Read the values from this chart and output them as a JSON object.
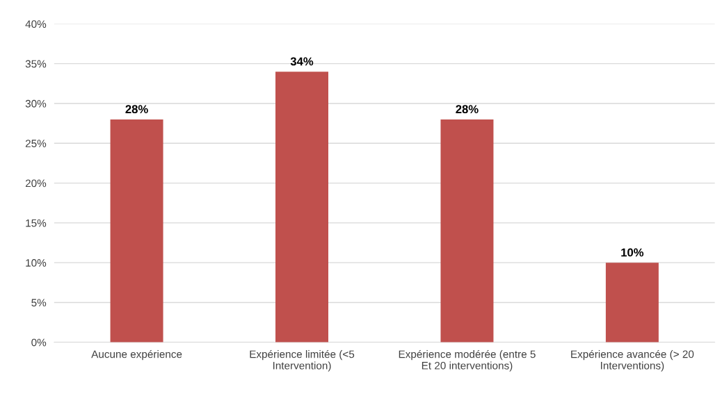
{
  "chart_data": {
    "type": "bar",
    "categories": [
      "Aucune expérience",
      "Expérience limitée (<5\nIntervention)",
      "Expérience modérée (entre 5\nEt 20 interventions)",
      "Expérience avancée (> 20\nInterventions)"
    ],
    "values": [
      28,
      34,
      28,
      10
    ],
    "color": "#c0504d",
    "ylim": [
      0,
      40
    ],
    "yticks": [
      {
        "value": 0,
        "label": "0%"
      },
      {
        "value": 5,
        "label": "5%"
      },
      {
        "value": 10,
        "label": "10%"
      },
      {
        "value": 15,
        "label": "15%"
      },
      {
        "value": 20,
        "label": "20%"
      },
      {
        "value": 25,
        "label": "25%"
      },
      {
        "value": 30,
        "label": "30%"
      },
      {
        "value": 35,
        "label": "35%"
      },
      {
        "value": 40,
        "label": "40%"
      }
    ],
    "grid": "y",
    "value_labels": [
      "28%",
      "34%",
      "28%",
      "10%"
    ]
  }
}
